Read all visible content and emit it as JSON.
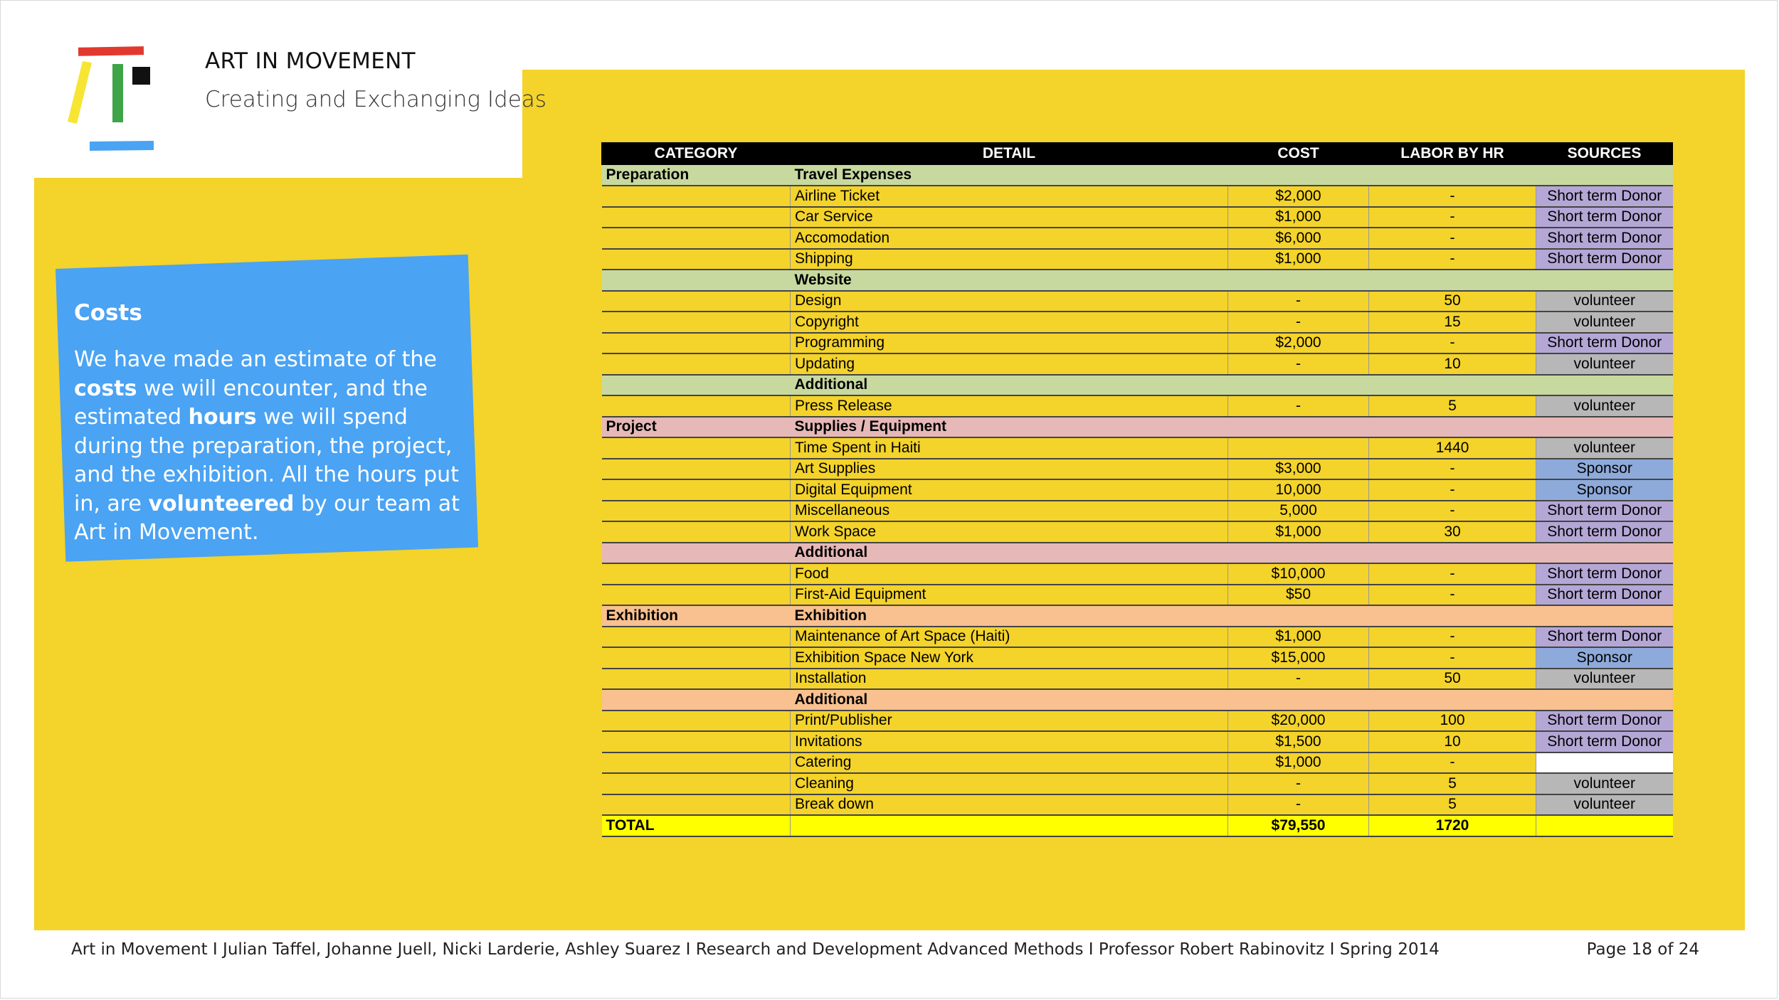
{
  "header": {
    "org_name": "ART IN MOVEMENT",
    "tagline": "Creating and Exchanging Ideas"
  },
  "costs_card": {
    "title": "Costs",
    "body": [
      {
        "text": "We have made an estimate of the ",
        "bold": false
      },
      {
        "text": "costs",
        "bold": true
      },
      {
        "text": " we will encounter, and the estimated ",
        "bold": false
      },
      {
        "text": "hours",
        "bold": true
      },
      {
        "text": " we will spend during the preparation, the project, and the exhibition. All the hours put in, are ",
        "bold": false
      },
      {
        "text": "volunteered",
        "bold": true
      },
      {
        "text": " by our team at Art in Movement.",
        "bold": false
      }
    ]
  },
  "colors": {
    "panel_yellow": "#f4d32a",
    "card_blue": "#4aa3f3",
    "preparation_green": "#c8d9a0",
    "project_pink": "#e6b8b7",
    "exhibition_orange": "#f9c090",
    "total_yellow": "#ffff00",
    "donor_purple": "#b4a7d6",
    "volunteer_gray": "#b7b7b7",
    "sponsor_blue": "#8eaadb"
  },
  "table": {
    "headers": [
      "CATEGORY",
      "DETAIL",
      "COST",
      "LABOR BY HR",
      "SOURCES"
    ],
    "rows": [
      {
        "kind": "group",
        "category": "Preparation",
        "detail": "Travel Expenses",
        "color": "#c8d9a0"
      },
      {
        "kind": "item",
        "detail": "Airline Ticket",
        "cost": "$2,000",
        "labor": "-",
        "source": "Short term Donor"
      },
      {
        "kind": "item",
        "detail": "Car Service",
        "cost": "$1,000",
        "labor": "-",
        "source": "Short term Donor"
      },
      {
        "kind": "item",
        "detail": "Accomodation",
        "cost": "$6,000",
        "labor": "-",
        "source": "Short term Donor"
      },
      {
        "kind": "item",
        "detail": "Shipping",
        "cost": "$1,000",
        "labor": "-",
        "source": "Short term Donor"
      },
      {
        "kind": "group",
        "category": "",
        "detail": "Website",
        "color": "#c8d9a0"
      },
      {
        "kind": "item",
        "detail": "Design",
        "cost": "-",
        "labor": "50",
        "source": "volunteer"
      },
      {
        "kind": "item",
        "detail": "Copyright",
        "cost": "-",
        "labor": "15",
        "source": "volunteer"
      },
      {
        "kind": "item",
        "detail": "Programming",
        "cost": "$2,000",
        "labor": "-",
        "source": "Short term Donor"
      },
      {
        "kind": "item",
        "detail": "Updating",
        "cost": "-",
        "labor": "10",
        "source": "volunteer"
      },
      {
        "kind": "group",
        "category": "",
        "detail": "Additional",
        "color": "#c8d9a0"
      },
      {
        "kind": "item",
        "detail": "Press Release",
        "cost": "-",
        "labor": "5",
        "source": "volunteer"
      },
      {
        "kind": "group",
        "category": "Project",
        "detail": "Supplies / Equipment",
        "color": "#e6b8b7"
      },
      {
        "kind": "item",
        "detail": "Time Spent in Haiti",
        "cost": "",
        "labor": "1440",
        "source": "volunteer"
      },
      {
        "kind": "item",
        "detail": "Art Supplies",
        "cost": "$3,000",
        "labor": "-",
        "source": "Sponsor"
      },
      {
        "kind": "item",
        "detail": "Digital Equipment",
        "cost": "10,000",
        "labor": "-",
        "source": "Sponsor"
      },
      {
        "kind": "item",
        "detail": "Miscellaneous",
        "cost": "5,000",
        "labor": "-",
        "source": "Short term Donor"
      },
      {
        "kind": "item",
        "detail": "Work Space",
        "cost": "$1,000",
        "labor": "30",
        "source": "Short term Donor"
      },
      {
        "kind": "group",
        "category": "",
        "detail": "Additional",
        "color": "#e6b8b7"
      },
      {
        "kind": "item",
        "detail": "Food",
        "cost": "$10,000",
        "labor": "-",
        "source": "Short term Donor"
      },
      {
        "kind": "item",
        "detail": "First-Aid Equipment",
        "cost": "$50",
        "labor": "-",
        "source": "Short term Donor"
      },
      {
        "kind": "group",
        "category": "Exhibition",
        "detail": "Exhibition",
        "color": "#f9c090"
      },
      {
        "kind": "item",
        "detail": "Maintenance of Art Space (Haiti)",
        "cost": "$1,000",
        "labor": "-",
        "source": "Short term Donor"
      },
      {
        "kind": "item",
        "detail": "Exhibition Space New York",
        "cost": "$15,000",
        "labor": "-",
        "source": "Sponsor"
      },
      {
        "kind": "item",
        "detail": "Installation",
        "cost": "-",
        "labor": "50",
        "source": "volunteer"
      },
      {
        "kind": "group",
        "category": "",
        "detail": "Additional",
        "color": "#f9c090"
      },
      {
        "kind": "item",
        "detail": "Print/Publisher",
        "cost": "$20,000",
        "labor": "100",
        "source": "Short term Donor"
      },
      {
        "kind": "item",
        "detail": "Invitations",
        "cost": "$1,500",
        "labor": "10",
        "source": "Short term Donor"
      },
      {
        "kind": "item",
        "detail": "Catering",
        "cost": "$1,000",
        "labor": "-",
        "source": ""
      },
      {
        "kind": "item",
        "detail": "Cleaning",
        "cost": "-",
        "labor": "5",
        "source": "volunteer"
      },
      {
        "kind": "item",
        "detail": "Break down",
        "cost": "-",
        "labor": "5",
        "source": "volunteer"
      }
    ],
    "total": {
      "label": "TOTAL",
      "cost": "$79,550",
      "labor": "1720"
    }
  },
  "footer": {
    "text": "Art in Movement I Julian Taffel, Johanne Juell, Nicki Larderie, Ashley Suarez I Research and Development Advanced Methods I Professor Robert Rabinovitz I Spring 2014",
    "page": "Page 18 of 24"
  }
}
